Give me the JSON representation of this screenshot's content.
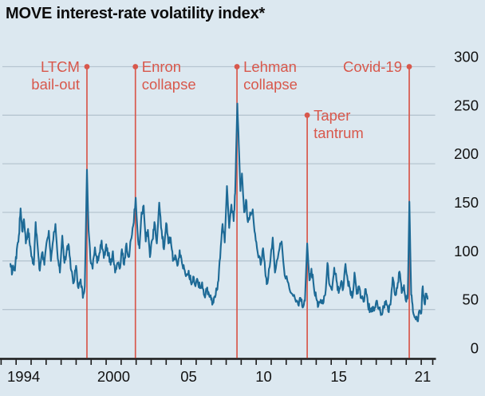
{
  "title": "MOVE interest-rate volatility index*",
  "colors": {
    "background": "#dce8f0",
    "series_line": "#1d6a96",
    "event_red": "#d8584c",
    "gridline": "#b6c5d0",
    "axis_line": "#1a1a1a",
    "tick_text": "#121212",
    "title_text": "#0d0d0d"
  },
  "chart_data": {
    "type": "line",
    "title": "MOVE interest-rate volatility index*",
    "grid": "horizontal-only",
    "legend": "none",
    "x_axis": {
      "range_years": [
        1993.45,
        2021.8
      ],
      "tick_interval_years": 1,
      "labels": [
        {
          "text": "1994",
          "center_year": 1994.5
        },
        {
          "text": "2000",
          "center_year": 2000.5
        },
        {
          "text": "05",
          "center_year": 2005.5
        },
        {
          "text": "10",
          "center_year": 2010.5
        },
        {
          "text": "15",
          "center_year": 2015.5
        },
        {
          "text": "21",
          "center_year": 2021.1
        }
      ]
    },
    "y_axis": {
      "side": "right",
      "range": [
        0,
        300
      ],
      "ticks": [
        {
          "value": 0,
          "label": "0"
        },
        {
          "value": 50,
          "label": "50"
        },
        {
          "value": 100,
          "label": "100"
        },
        {
          "value": 150,
          "label": "150"
        },
        {
          "value": 200,
          "label": "200"
        },
        {
          "value": 250,
          "label": "250"
        },
        {
          "value": 300,
          "label": "300"
        }
      ]
    },
    "annotations": [
      {
        "id": "ltcm",
        "lines": [
          "LTCM",
          "bail-out"
        ],
        "year": 1998.72,
        "marker_value": 300,
        "label_side": "left"
      },
      {
        "id": "enron",
        "lines": [
          "Enron",
          "collapse"
        ],
        "year": 2001.95,
        "marker_value": 300,
        "label_side": "right"
      },
      {
        "id": "lehman",
        "lines": [
          "Lehman",
          "collapse"
        ],
        "year": 2008.72,
        "marker_value": 300,
        "label_side": "right"
      },
      {
        "id": "taper",
        "lines": [
          "Taper",
          "tantrum"
        ],
        "year": 2013.4,
        "marker_value": 250,
        "label_side": "right"
      },
      {
        "id": "covid",
        "lines": [
          "Covid-19"
        ],
        "year": 2020.2,
        "marker_value": 300,
        "label_side": "left"
      }
    ],
    "series": [
      {
        "name": "MOVE index",
        "points": [
          [
            1993.62,
            97
          ],
          [
            1993.72,
            86
          ],
          [
            1993.82,
            94
          ],
          [
            1993.92,
            90
          ],
          [
            1994.05,
            112
          ],
          [
            1994.18,
            126
          ],
          [
            1994.3,
            154
          ],
          [
            1994.4,
            131
          ],
          [
            1994.52,
            143
          ],
          [
            1994.65,
            118
          ],
          [
            1994.8,
            133
          ],
          [
            1994.92,
            116
          ],
          [
            1995.05,
            104
          ],
          [
            1995.18,
            96
          ],
          [
            1995.3,
            140
          ],
          [
            1995.45,
            112
          ],
          [
            1995.58,
            90
          ],
          [
            1995.72,
            108
          ],
          [
            1995.88,
            96
          ],
          [
            1996.02,
            118
          ],
          [
            1996.18,
            131
          ],
          [
            1996.32,
            100
          ],
          [
            1996.48,
            122
          ],
          [
            1996.62,
            138
          ],
          [
            1996.78,
            102
          ],
          [
            1996.92,
            88
          ],
          [
            1997.08,
            126
          ],
          [
            1997.22,
            98
          ],
          [
            1997.38,
            112
          ],
          [
            1997.52,
            115
          ],
          [
            1997.68,
            90
          ],
          [
            1997.85,
            78
          ],
          [
            1998.0,
            95
          ],
          [
            1998.15,
            72
          ],
          [
            1998.3,
            81
          ],
          [
            1998.45,
            62
          ],
          [
            1998.58,
            74
          ],
          [
            1998.72,
            194
          ],
          [
            1998.83,
            131
          ],
          [
            1998.95,
            102
          ],
          [
            1999.1,
            92
          ],
          [
            1999.25,
            114
          ],
          [
            1999.4,
            98
          ],
          [
            1999.55,
            108
          ],
          [
            1999.7,
            121
          ],
          [
            1999.85,
            103
          ],
          [
            2000.0,
            117
          ],
          [
            2000.15,
            107
          ],
          [
            2000.3,
            96
          ],
          [
            2000.45,
            110
          ],
          [
            2000.6,
            88
          ],
          [
            2000.75,
            98
          ],
          [
            2000.9,
            92
          ],
          [
            2001.05,
            112
          ],
          [
            2001.2,
            96
          ],
          [
            2001.35,
            118
          ],
          [
            2001.5,
            104
          ],
          [
            2001.65,
            122
          ],
          [
            2001.8,
            136
          ],
          [
            2001.97,
            165
          ],
          [
            2002.1,
            128
          ],
          [
            2002.22,
            113
          ],
          [
            2002.36,
            150
          ],
          [
            2002.5,
            157
          ],
          [
            2002.64,
            120
          ],
          [
            2002.78,
            132
          ],
          [
            2002.92,
            104
          ],
          [
            2003.08,
            122
          ],
          [
            2003.22,
            140
          ],
          [
            2003.38,
            118
          ],
          [
            2003.54,
            160
          ],
          [
            2003.7,
            131
          ],
          [
            2003.85,
            112
          ],
          [
            2004.0,
            139
          ],
          [
            2004.15,
            118
          ],
          [
            2004.3,
            124
          ],
          [
            2004.45,
            100
          ],
          [
            2004.6,
            106
          ],
          [
            2004.75,
            95
          ],
          [
            2004.9,
            111
          ],
          [
            2005.05,
            98
          ],
          [
            2005.2,
            92
          ],
          [
            2005.35,
            85
          ],
          [
            2005.5,
            90
          ],
          [
            2005.65,
            78
          ],
          [
            2005.8,
            84
          ],
          [
            2005.95,
            74
          ],
          [
            2006.1,
            80
          ],
          [
            2006.25,
            72
          ],
          [
            2006.4,
            78
          ],
          [
            2006.55,
            64
          ],
          [
            2006.7,
            70
          ],
          [
            2006.85,
            66
          ],
          [
            2007.0,
            60
          ],
          [
            2007.15,
            57
          ],
          [
            2007.3,
            65
          ],
          [
            2007.45,
            78
          ],
          [
            2007.6,
            103
          ],
          [
            2007.76,
            138
          ],
          [
            2007.9,
            119
          ],
          [
            2008.05,
            177
          ],
          [
            2008.2,
            134
          ],
          [
            2008.35,
            158
          ],
          [
            2008.5,
            141
          ],
          [
            2008.6,
            170
          ],
          [
            2008.74,
            262
          ],
          [
            2008.84,
            221
          ],
          [
            2008.95,
            172
          ],
          [
            2009.05,
            190
          ],
          [
            2009.2,
            150
          ],
          [
            2009.32,
            163
          ],
          [
            2009.45,
            140
          ],
          [
            2009.6,
            150
          ],
          [
            2009.77,
            153
          ],
          [
            2009.93,
            128
          ],
          [
            2010.1,
            109
          ],
          [
            2010.3,
            96
          ],
          [
            2010.46,
            113
          ],
          [
            2010.6,
            90
          ],
          [
            2010.7,
            76
          ],
          [
            2010.9,
            94
          ],
          [
            2011.1,
            124
          ],
          [
            2011.25,
            88
          ],
          [
            2011.5,
            109
          ],
          [
            2011.7,
            120
          ],
          [
            2011.9,
            85
          ],
          [
            2012.15,
            77
          ],
          [
            2012.4,
            66
          ],
          [
            2012.65,
            58
          ],
          [
            2012.8,
            55
          ],
          [
            2012.95,
            62
          ],
          [
            2013.1,
            52
          ],
          [
            2013.25,
            59
          ],
          [
            2013.4,
            118
          ],
          [
            2013.55,
            80
          ],
          [
            2013.68,
            92
          ],
          [
            2013.85,
            72
          ],
          [
            2014.0,
            62
          ],
          [
            2014.15,
            54
          ],
          [
            2014.3,
            60
          ],
          [
            2014.45,
            56
          ],
          [
            2014.6,
            65
          ],
          [
            2014.75,
            98
          ],
          [
            2014.9,
            75
          ],
          [
            2015.05,
            70
          ],
          [
            2015.2,
            93
          ],
          [
            2015.35,
            80
          ],
          [
            2015.5,
            67
          ],
          [
            2015.65,
            78
          ],
          [
            2015.8,
            72
          ],
          [
            2015.95,
            97
          ],
          [
            2016.1,
            80
          ],
          [
            2016.25,
            72
          ],
          [
            2016.4,
            62
          ],
          [
            2016.55,
            88
          ],
          [
            2016.7,
            66
          ],
          [
            2016.85,
            74
          ],
          [
            2017.0,
            62
          ],
          [
            2017.15,
            58
          ],
          [
            2017.3,
            71
          ],
          [
            2017.45,
            54
          ],
          [
            2017.6,
            50
          ],
          [
            2017.75,
            48
          ],
          [
            2017.9,
            52
          ],
          [
            2018.05,
            59
          ],
          [
            2018.2,
            50
          ],
          [
            2018.35,
            45
          ],
          [
            2018.5,
            52
          ],
          [
            2018.65,
            59
          ],
          [
            2018.8,
            48
          ],
          [
            2018.95,
            55
          ],
          [
            2019.1,
            83
          ],
          [
            2019.25,
            65
          ],
          [
            2019.4,
            72
          ],
          [
            2019.55,
            89
          ],
          [
            2019.7,
            67
          ],
          [
            2019.85,
            75
          ],
          [
            2020.0,
            58
          ],
          [
            2020.1,
            63
          ],
          [
            2020.21,
            161
          ],
          [
            2020.33,
            65
          ],
          [
            2020.45,
            48
          ],
          [
            2020.6,
            42
          ],
          [
            2020.75,
            38
          ],
          [
            2020.88,
            49
          ],
          [
            2021.0,
            46
          ],
          [
            2021.1,
            74
          ],
          [
            2021.22,
            56
          ],
          [
            2021.32,
            65
          ],
          [
            2021.42,
            61
          ]
        ]
      }
    ]
  }
}
